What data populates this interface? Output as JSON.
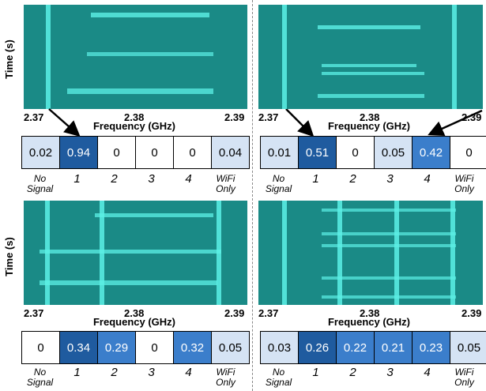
{
  "axis": {
    "ylabel": "Time (s)",
    "xlabel": "Frequency (GHz)",
    "ticks": [
      "2.37",
      "2.38",
      "2.39"
    ]
  },
  "categories": [
    "No Signal",
    "1",
    "2",
    "3",
    "4",
    "WiFi Only"
  ],
  "panels": [
    {
      "id": "top-left",
      "values": [
        "0.02",
        "0.94",
        "0",
        "0",
        "0",
        "0.04"
      ],
      "arrows_to": [
        1
      ]
    },
    {
      "id": "top-right",
      "values": [
        "0.01",
        "0.51",
        "0",
        "0.05",
        "0.42",
        "0"
      ],
      "arrows_to": [
        1,
        4
      ]
    },
    {
      "id": "bottom-left",
      "values": [
        "0",
        "0.34",
        "0.29",
        "0",
        "0.32",
        "0.05"
      ],
      "arrows_to": []
    },
    {
      "id": "bottom-right",
      "values": [
        "0.03",
        "0.26",
        "0.22",
        "0.21",
        "0.23",
        "0.05"
      ],
      "arrows_to": []
    }
  ],
  "colors": {
    "spectrum_bg": "#1a8a86",
    "signal": "#5cf0e6",
    "cell_dark": "#1f5b9f",
    "cell_mid": "#3b7ecb",
    "cell_light": "#d5e3f4"
  }
}
